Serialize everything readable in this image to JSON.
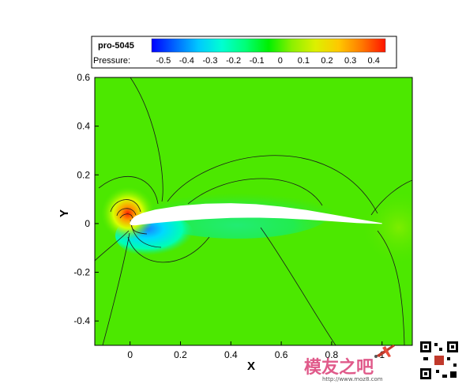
{
  "chart_data": {
    "type": "heatmap",
    "title": "",
    "legend": {
      "title": "pro-5045",
      "variable": "Pressure:",
      "placement": "top",
      "levels": [
        -0.5,
        -0.4,
        -0.3,
        -0.2,
        -0.1,
        0,
        0.1,
        0.2,
        0.3,
        0.4
      ],
      "level_labels": [
        "-0.5",
        "-0.4",
        "-0.3",
        "-0.2",
        "-0.1",
        "0",
        "0.1",
        "0.2",
        "0.3",
        "0.4"
      ],
      "colormap": [
        "#0000ff",
        "#0066ff",
        "#00c8ff",
        "#00ffd2",
        "#00ff78",
        "#00f000",
        "#8cf000",
        "#dcf000",
        "#ffc800",
        "#ff7800",
        "#ff1400"
      ]
    },
    "xlabel": "X",
    "ylabel": "Y",
    "xlim": [
      -0.14,
      1.12
    ],
    "ylim": [
      -0.5,
      0.6
    ],
    "x_ticks": [
      0,
      0.2,
      0.4,
      0.6,
      0.8,
      1
    ],
    "x_tick_labels": [
      "0",
      "0.2",
      "0.4",
      "0.6",
      "0.8",
      "1"
    ],
    "y_ticks": [
      -0.4,
      -0.2,
      0,
      0.2,
      0.4,
      0.6
    ],
    "y_tick_labels": [
      "-0.4",
      "-0.2",
      "0",
      "0.2",
      "0.4",
      "0.6"
    ],
    "background_pressure": 0.05,
    "grid": false,
    "airfoil": {
      "leading_edge": [
        0,
        0
      ],
      "trailing_edge": [
        1,
        0
      ],
      "upper": [
        [
          0,
          0
        ],
        [
          0.005,
          0.012
        ],
        [
          0.02,
          0.028
        ],
        [
          0.05,
          0.042
        ],
        [
          0.1,
          0.056
        ],
        [
          0.2,
          0.072
        ],
        [
          0.3,
          0.08
        ],
        [
          0.4,
          0.082
        ],
        [
          0.5,
          0.078
        ],
        [
          0.6,
          0.068
        ],
        [
          0.7,
          0.054
        ],
        [
          0.8,
          0.036
        ],
        [
          0.9,
          0.018
        ],
        [
          1,
          0
        ]
      ],
      "lower": [
        [
          0,
          0
        ],
        [
          0.005,
          -0.005
        ],
        [
          0.02,
          -0.006
        ],
        [
          0.05,
          -0.002
        ],
        [
          0.1,
          0.004
        ],
        [
          0.2,
          0.013
        ],
        [
          0.3,
          0.02
        ],
        [
          0.4,
          0.025
        ],
        [
          0.5,
          0.026
        ],
        [
          0.6,
          0.023
        ],
        [
          0.7,
          0.018
        ],
        [
          0.8,
          0.011
        ],
        [
          0.9,
          0.004
        ],
        [
          1,
          0
        ]
      ]
    },
    "pressure_regions": [
      {
        "name": "stagnation",
        "center": [
          0,
          0.01
        ],
        "value": 0.4
      },
      {
        "name": "leading-edge-lower-suction",
        "center": [
          0.08,
          -0.04
        ],
        "value": -0.3
      },
      {
        "name": "upper-surface-suction",
        "center": [
          0.45,
          0.1
        ],
        "value": -0.1
      },
      {
        "name": "trailing-edge-recovery",
        "center": [
          1.05,
          0.0
        ],
        "value": 0.05
      }
    ]
  },
  "watermark": {
    "brand": "模友之吧",
    "url": "http://www.moz8.com"
  }
}
